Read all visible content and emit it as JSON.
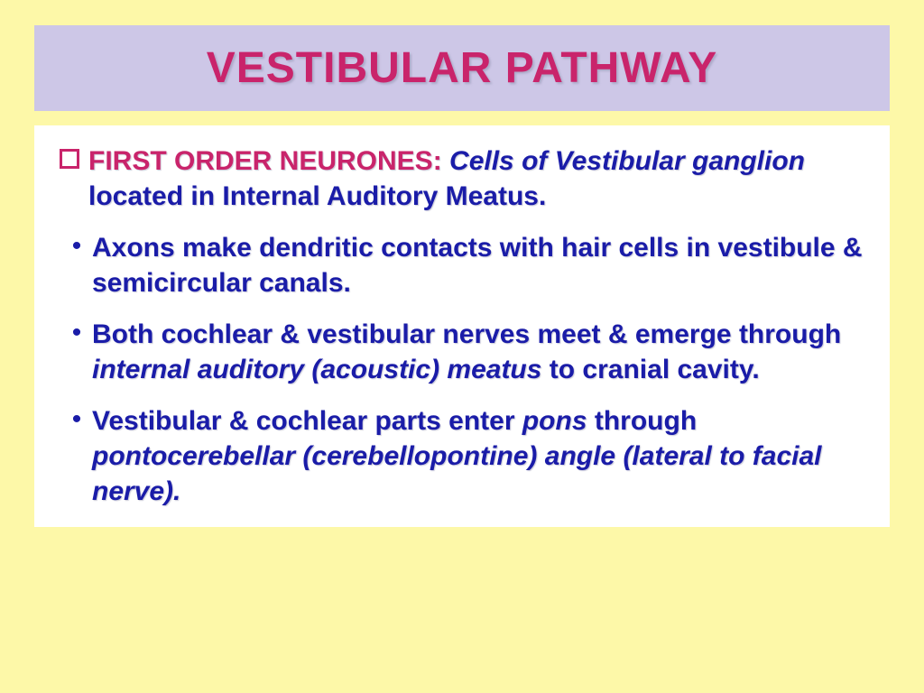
{
  "title": "VESTIBULAR PATHWAY",
  "colors": {
    "page_bg": "#fdf8a8",
    "title_bg": "#cdc7e7",
    "title_text": "#c9246b",
    "body_text": "#1a1ca8",
    "accent_red": "#c9246b",
    "content_bg": "#ffffff"
  },
  "fontsize": {
    "title": 48,
    "body": 30
  },
  "items": [
    {
      "bullet": "square",
      "runs": [
        {
          "text": "FIRST ORDER NEURONES: ",
          "style": "red"
        },
        {
          "text": "Cells of Vestibular ganglion ",
          "style": "blue-ital"
        },
        {
          "text": "located in Internal Auditory Meatus.",
          "style": "blue"
        }
      ]
    },
    {
      "bullet": "dot",
      "runs": [
        {
          "text": "Axons make dendritic contacts with hair cells in vestibule & semicircular canals.",
          "style": "blue"
        }
      ]
    },
    {
      "bullet": "dot",
      "runs": [
        {
          "text": "Both cochlear & vestibular nerves meet & emerge through ",
          "style": "blue"
        },
        {
          "text": "internal auditory (acoustic) meatus ",
          "style": "blue-ital"
        },
        {
          "text": "to cranial cavity.",
          "style": "blue"
        }
      ]
    },
    {
      "bullet": "dot",
      "runs": [
        {
          "text": "Vestibular & cochlear parts enter ",
          "style": "blue"
        },
        {
          "text": "pons ",
          "style": "blue-ital"
        },
        {
          "text": "through ",
          "style": "blue"
        },
        {
          "text": "pontocerebellar (cerebellopontine) angle (lateral to facial nerve).",
          "style": "blue-ital"
        }
      ]
    }
  ]
}
